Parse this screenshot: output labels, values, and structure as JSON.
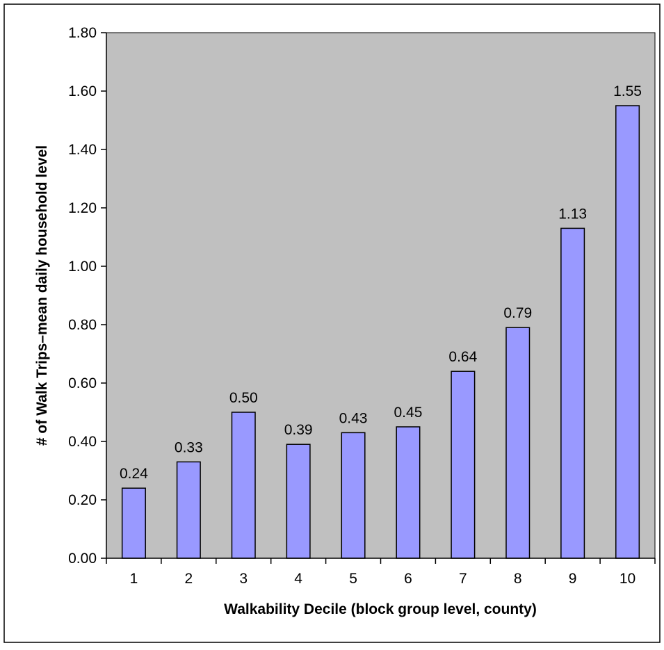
{
  "chart_data": {
    "type": "bar",
    "categories": [
      "1",
      "2",
      "3",
      "4",
      "5",
      "6",
      "7",
      "8",
      "9",
      "10"
    ],
    "values": [
      0.24,
      0.33,
      0.5,
      0.39,
      0.43,
      0.45,
      0.64,
      0.79,
      1.13,
      1.55
    ],
    "value_labels": [
      "0.24",
      "0.33",
      "0.50",
      "0.39",
      "0.43",
      "0.45",
      "0.64",
      "0.79",
      "1.13",
      "1.55"
    ],
    "y_ticks": [
      "0.00",
      "0.20",
      "0.40",
      "0.60",
      "0.80",
      "1.00",
      "1.20",
      "1.40",
      "1.60",
      "1.80"
    ],
    "xlabel": "Walkability Decile (block group level, county)",
    "ylabel": "# of Walk Trips–mean daily household level",
    "ylim": [
      0,
      1.8
    ],
    "grid": false,
    "legend": "none",
    "colors": {
      "bar_fill": "#9999ff",
      "bar_stroke": "#000000",
      "plot_background": "#c0c0c0",
      "frame": "#000000"
    }
  }
}
